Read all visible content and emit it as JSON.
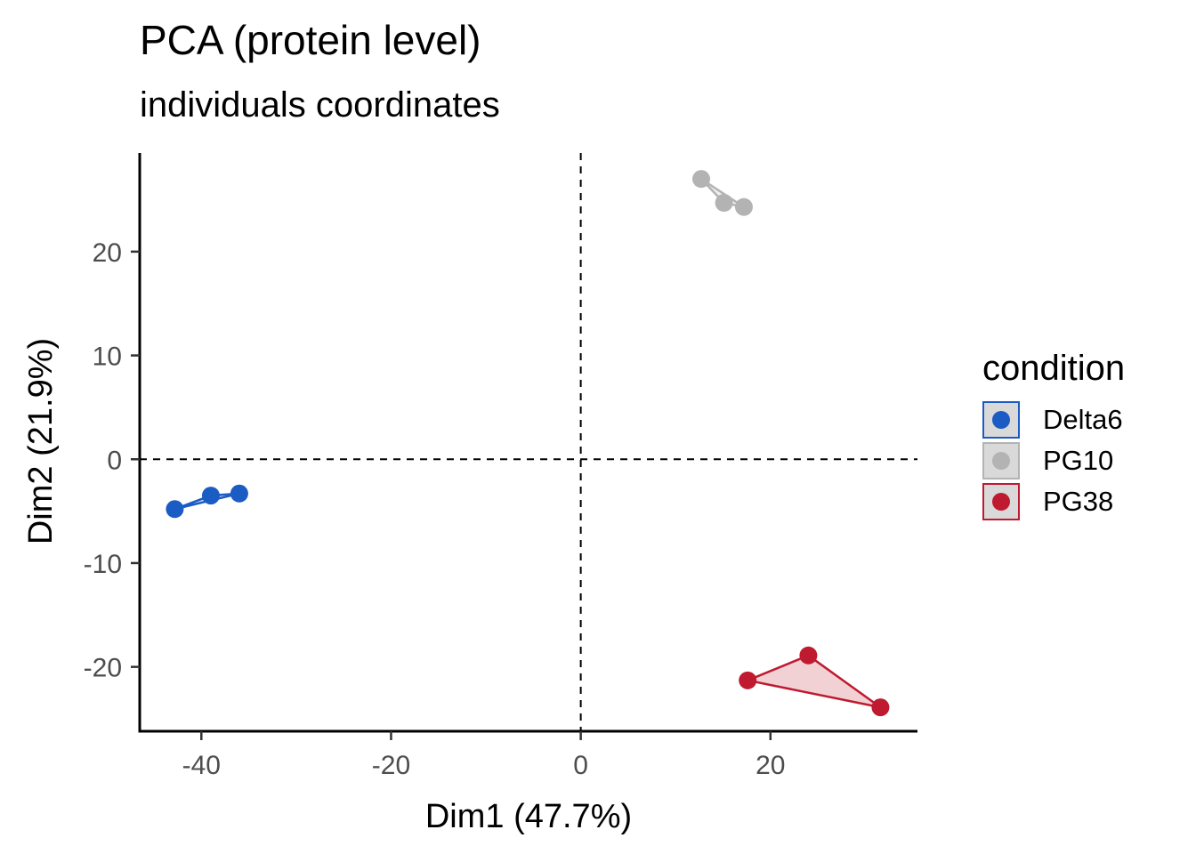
{
  "chart_data": {
    "type": "scatter",
    "title": "PCA (protein level)",
    "subtitle": "individuals coordinates",
    "xlabel": "Dim1 (47.7%)",
    "ylabel": "Dim2 (21.9%)",
    "xlim": [
      -46.5,
      35.5
    ],
    "ylim": [
      -26.2,
      29.5
    ],
    "xticks": [
      -40,
      -20,
      0,
      20
    ],
    "yticks": [
      -20,
      -10,
      0,
      10,
      20
    ],
    "x_tick_labels": [
      "-40",
      "-20",
      "0",
      "20"
    ],
    "y_tick_labels": [
      "-20",
      "-10",
      "0",
      "10",
      "20"
    ],
    "reference_lines": {
      "x": 0,
      "y": 0,
      "style": "dashed"
    },
    "grid": false,
    "legend": {
      "title": "condition",
      "placement": "right"
    },
    "series": [
      {
        "name": "Delta6",
        "color": "#1a5bc4",
        "fill_opacity": 0.2,
        "points": [
          {
            "x": -42.8,
            "y": -4.8
          },
          {
            "x": -39.0,
            "y": -3.5
          },
          {
            "x": -36.0,
            "y": -3.3
          }
        ]
      },
      {
        "name": "PG10",
        "color": "#b3b3b3",
        "fill_opacity": 0.2,
        "points": [
          {
            "x": 12.7,
            "y": 27.0
          },
          {
            "x": 15.1,
            "y": 24.7
          },
          {
            "x": 17.2,
            "y": 24.3
          }
        ]
      },
      {
        "name": "PG38",
        "color": "#bf1a2f",
        "fill_opacity": 0.2,
        "points": [
          {
            "x": 17.6,
            "y": -21.3
          },
          {
            "x": 24.0,
            "y": -18.9
          },
          {
            "x": 31.6,
            "y": -23.9
          }
        ]
      }
    ]
  }
}
